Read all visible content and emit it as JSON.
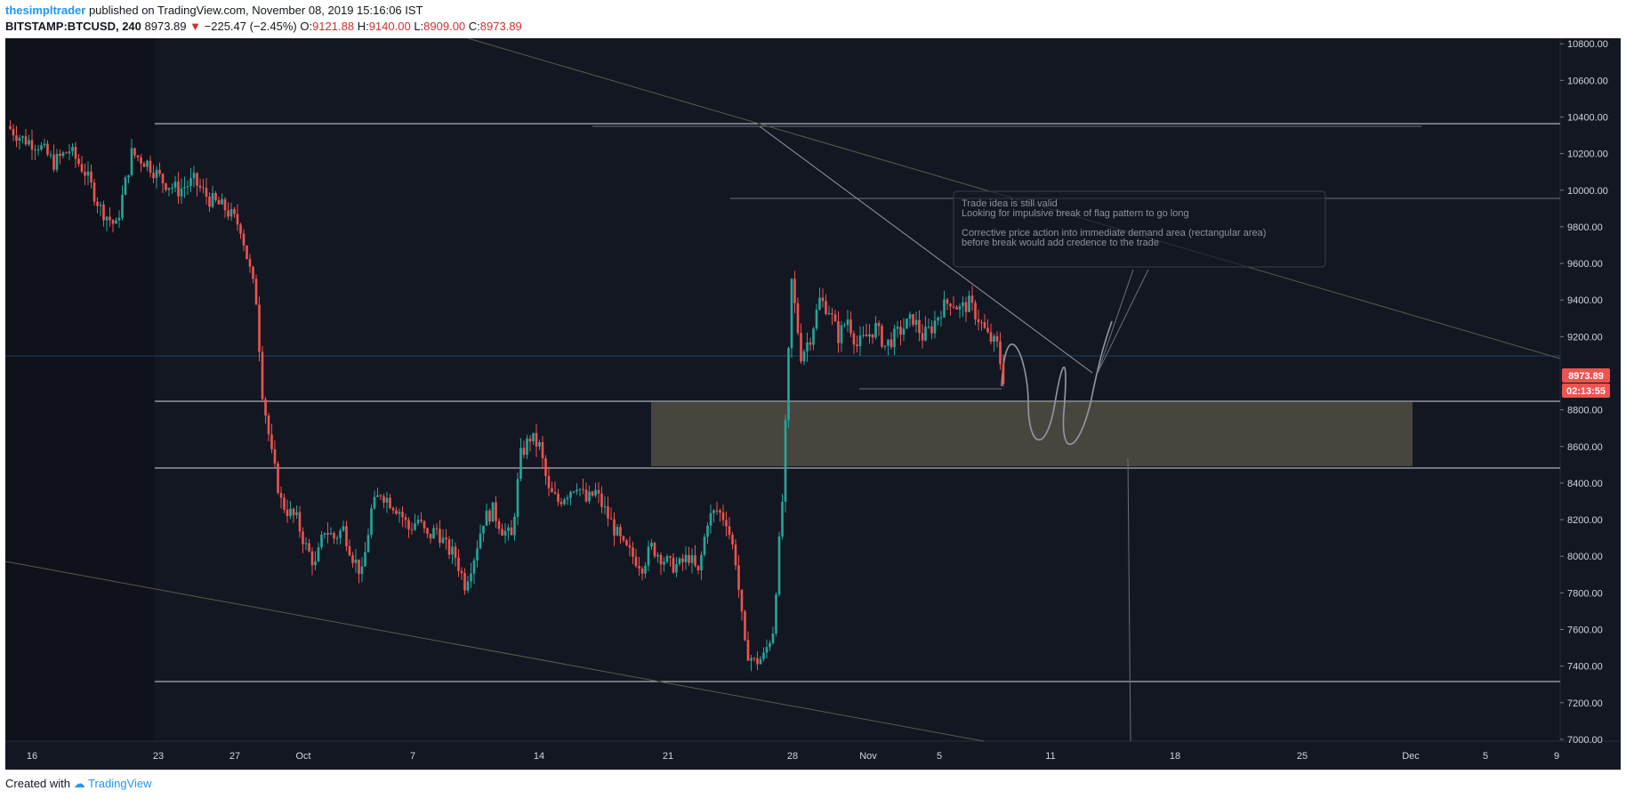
{
  "header": {
    "author": "thesimpltrader",
    "published_text": "published on TradingView.com, November 08, 2019 15:16:06 IST"
  },
  "symbol_line": {
    "symbol": "BITSTAMP:BTCUSD, 240",
    "last": "8973.89",
    "arrow": "▼",
    "change": "−225.47 (−2.45%)",
    "o_label": "O:",
    "o_value": "9121.88",
    "h_label": "H:",
    "h_value": "9140.00",
    "l_label": "L:",
    "l_value": "8909.00",
    "c_label": "C:",
    "c_value": "8973.89"
  },
  "footer": {
    "created_with": "Created with",
    "brand": "TradingView"
  },
  "colors": {
    "background": "#131722",
    "up": "#26a69a",
    "down": "#ef5350",
    "accent": "#2196f3",
    "price_badge": "#ef5350"
  },
  "chart_data": {
    "type": "candlestick",
    "symbol": "BITSTAMP:BTCUSD",
    "timeframe": "240",
    "y_ticks": [
      "10800.00",
      "10600.00",
      "10400.00",
      "10200.00",
      "10000.00",
      "9800.00",
      "9600.00",
      "9400.00",
      "9200.00",
      "8800.00",
      "8600.00",
      "8400.00",
      "8200.00",
      "8000.00",
      "7800.00",
      "7600.00",
      "7400.00",
      "7200.00",
      "7000.00"
    ],
    "ylim": [
      6990,
      10830
    ],
    "x_ticks": [
      "16",
      "23",
      "27",
      "Oct",
      "7",
      "14",
      "21",
      "28",
      "Nov",
      "5",
      "11",
      "18",
      "25",
      "Dec",
      "5",
      "9"
    ],
    "price_label": "8973.89",
    "countdown_label": "02:13:55",
    "annotation": [
      "Trade idea is still valid",
      "Looking for impulsive break of flag pattern to go long",
      "",
      "Corrective price action into immediate demand area (rectangular area)",
      "before break would add credence to the trade"
    ],
    "close_path": [
      [
        0,
        10350
      ],
      [
        5,
        10280
      ],
      [
        10,
        10250
      ],
      [
        15,
        10150
      ],
      [
        20,
        10220
      ],
      [
        25,
        10100
      ],
      [
        30,
        9900
      ],
      [
        35,
        9800
      ],
      [
        40,
        10200
      ],
      [
        45,
        10150
      ],
      [
        50,
        10050
      ],
      [
        55,
        10000
      ],
      [
        60,
        10050
      ],
      [
        65,
        9950
      ],
      [
        70,
        9900
      ],
      [
        75,
        9800
      ],
      [
        80,
        9400
      ],
      [
        82,
        8900
      ],
      [
        85,
        8550
      ],
      [
        88,
        8300
      ],
      [
        90,
        8250
      ],
      [
        93,
        8200
      ],
      [
        96,
        8050
      ],
      [
        99,
        7950
      ],
      [
        102,
        8150
      ],
      [
        105,
        8100
      ],
      [
        108,
        8150
      ],
      [
        111,
        8000
      ],
      [
        114,
        7900
      ],
      [
        117,
        8250
      ],
      [
        120,
        8350
      ],
      [
        123,
        8300
      ],
      [
        126,
        8250
      ],
      [
        129,
        8150
      ],
      [
        132,
        8200
      ],
      [
        135,
        8100
      ],
      [
        138,
        8150
      ],
      [
        141,
        8050
      ],
      [
        144,
        8000
      ],
      [
        147,
        7850
      ],
      [
        150,
        8000
      ],
      [
        153,
        8200
      ],
      [
        156,
        8250
      ],
      [
        159,
        8150
      ],
      [
        162,
        8100
      ],
      [
        165,
        8550
      ],
      [
        168,
        8650
      ],
      [
        171,
        8600
      ],
      [
        174,
        8350
      ],
      [
        177,
        8300
      ],
      [
        180,
        8350
      ],
      [
        183,
        8400
      ],
      [
        186,
        8300
      ],
      [
        189,
        8350
      ],
      [
        192,
        8250
      ],
      [
        195,
        8150
      ],
      [
        198,
        8050
      ],
      [
        201,
        8000
      ],
      [
        204,
        7950
      ],
      [
        207,
        8050
      ],
      [
        210,
        8000
      ],
      [
        213,
        7950
      ],
      [
        216,
        7950
      ],
      [
        219,
        8000
      ],
      [
        222,
        7900
      ],
      [
        225,
        8200
      ],
      [
        228,
        8250
      ],
      [
        231,
        8200
      ],
      [
        234,
        7980
      ],
      [
        237,
        7500
      ],
      [
        240,
        7420
      ],
      [
        243,
        7450
      ],
      [
        246,
        7600
      ],
      [
        249,
        8300
      ],
      [
        252,
        9500
      ],
      [
        255,
        9100
      ],
      [
        258,
        9200
      ],
      [
        261,
        9400
      ],
      [
        264,
        9350
      ],
      [
        267,
        9200
      ],
      [
        270,
        9300
      ],
      [
        273,
        9150
      ],
      [
        276,
        9200
      ],
      [
        279,
        9250
      ],
      [
        282,
        9150
      ],
      [
        285,
        9200
      ],
      [
        288,
        9250
      ],
      [
        291,
        9300
      ],
      [
        294,
        9200
      ],
      [
        297,
        9250
      ],
      [
        300,
        9350
      ],
      [
        303,
        9400
      ],
      [
        306,
        9350
      ],
      [
        309,
        9380
      ],
      [
        312,
        9300
      ],
      [
        315,
        9200
      ],
      [
        318,
        9150
      ],
      [
        320,
        8974
      ]
    ],
    "days_visible": 65
  }
}
